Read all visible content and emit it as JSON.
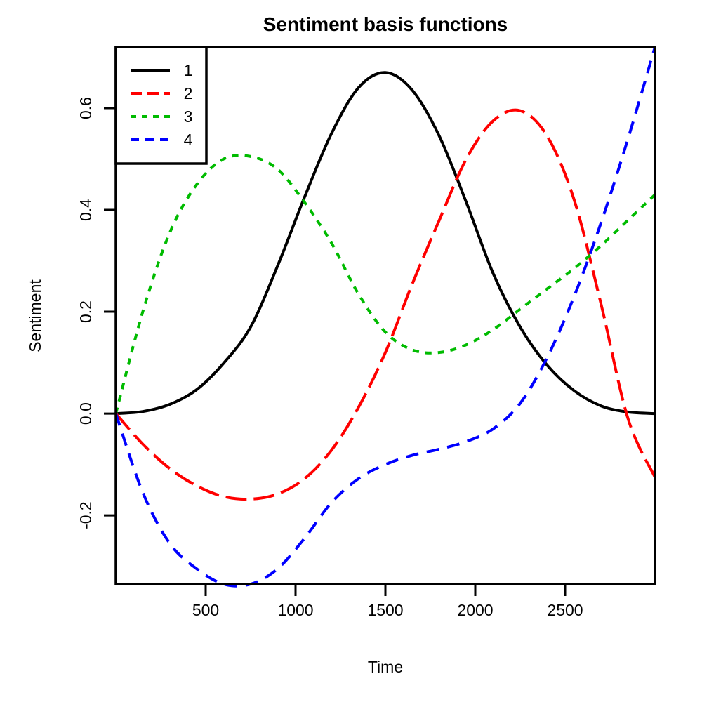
{
  "chart_data": {
    "type": "line",
    "title": "Sentiment basis functions",
    "xlabel": "Time",
    "ylabel": "Sentiment",
    "xlim": [
      0,
      3000
    ],
    "ylim": [
      -0.335,
      0.72
    ],
    "xticks": [
      500,
      1000,
      1500,
      2000,
      2500
    ],
    "yticks": [
      -0.2,
      0.0,
      0.2,
      0.4,
      0.6
    ],
    "ytick_labels": [
      "-0.2",
      "0.0",
      "0.2",
      "0.4",
      "0.6"
    ],
    "legend_position": "top-left",
    "grid": false,
    "series": [
      {
        "name": "1",
        "color": "#000000",
        "dash": "solid",
        "x": [
          0,
          150,
          300,
          450,
          600,
          750,
          900,
          1050,
          1200,
          1350,
          1500,
          1650,
          1800,
          1950,
          2100,
          2250,
          2400,
          2550,
          2700,
          2850,
          3000
        ],
        "y": [
          0.0,
          0.004,
          0.018,
          0.047,
          0.099,
          0.17,
          0.29,
          0.425,
          0.55,
          0.64,
          0.67,
          0.635,
          0.545,
          0.415,
          0.275,
          0.17,
          0.095,
          0.045,
          0.015,
          0.003,
          0.0
        ]
      },
      {
        "name": "2",
        "color": "#ff0000",
        "dash": "long",
        "x": [
          0,
          150,
          300,
          450,
          600,
          750,
          900,
          1050,
          1200,
          1350,
          1500,
          1650,
          1800,
          1950,
          2100,
          2250,
          2400,
          2550,
          2700,
          2850,
          3000
        ],
        "y": [
          0.0,
          -0.06,
          -0.108,
          -0.142,
          -0.163,
          -0.168,
          -0.158,
          -0.128,
          -0.072,
          0.012,
          0.12,
          0.255,
          0.38,
          0.5,
          0.575,
          0.595,
          0.545,
          0.42,
          0.215,
          -0.01,
          -0.125
        ]
      },
      {
        "name": "3",
        "color": "#00bb00",
        "dash": "short",
        "x": [
          0,
          150,
          300,
          450,
          600,
          750,
          900,
          1050,
          1200,
          1350,
          1500,
          1650,
          1800,
          1950,
          2100,
          2250,
          2400,
          2550,
          2700,
          2850,
          3000
        ],
        "y": [
          0.0,
          0.2,
          0.355,
          0.45,
          0.5,
          0.505,
          0.48,
          0.415,
          0.335,
          0.235,
          0.16,
          0.125,
          0.12,
          0.135,
          0.165,
          0.205,
          0.245,
          0.285,
          0.33,
          0.38,
          0.43
        ]
      },
      {
        "name": "4",
        "color": "#0000ff",
        "dash": "medium",
        "x": [
          0,
          150,
          300,
          450,
          600,
          750,
          900,
          1050,
          1200,
          1350,
          1500,
          1650,
          1800,
          1950,
          2100,
          2250,
          2400,
          2550,
          2700,
          2850,
          3000
        ],
        "y": [
          0.0,
          -0.155,
          -0.255,
          -0.305,
          -0.335,
          -0.335,
          -0.305,
          -0.245,
          -0.175,
          -0.128,
          -0.1,
          -0.082,
          -0.07,
          -0.055,
          -0.03,
          0.02,
          0.11,
          0.23,
          0.375,
          0.54,
          0.72
        ]
      }
    ]
  }
}
